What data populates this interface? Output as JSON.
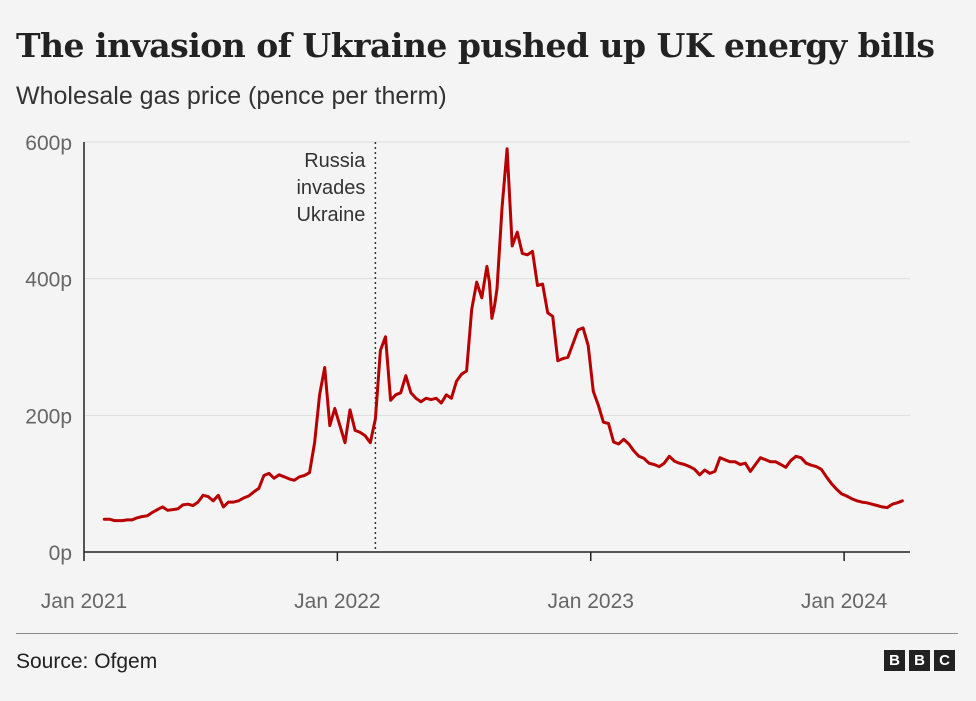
{
  "header": {
    "title": "The invasion of Ukraine pushed up UK energy bills",
    "subtitle": "Wholesale gas price (pence per therm)"
  },
  "footer": {
    "source": "Source: Ofgem",
    "logo_letters": [
      "B",
      "B",
      "C"
    ]
  },
  "colors": {
    "line": "#b80000",
    "axis": "#222222",
    "grid": "#dddddd"
  },
  "chart_data": {
    "type": "line",
    "title": "The invasion of Ukraine pushed up UK energy bills",
    "subtitle": "Wholesale gas price (pence per therm)",
    "xlabel": "",
    "ylabel": "",
    "xlim": [
      2021.0,
      2024.26
    ],
    "ylim": [
      0,
      600
    ],
    "grid": true,
    "y_ticks": [
      0,
      200,
      400,
      600
    ],
    "y_tick_labels": [
      "0p",
      "200p",
      "400p",
      "600p"
    ],
    "x_ticks": [
      2021.0,
      2022.0,
      2023.0,
      2024.0
    ],
    "x_tick_labels": [
      "Jan 2021",
      "Jan 2022",
      "Jan 2023",
      "Jan 2024"
    ],
    "annotation": {
      "x": 2022.15,
      "lines": [
        "Russia",
        "invades",
        "Ukraine"
      ]
    },
    "series": [
      {
        "name": "Wholesale gas price",
        "x": [
          2021.08,
          2021.1,
          2021.12,
          2021.15,
          2021.17,
          2021.19,
          2021.21,
          2021.23,
          2021.25,
          2021.27,
          2021.29,
          2021.31,
          2021.33,
          2021.35,
          2021.37,
          2021.39,
          2021.41,
          2021.43,
          2021.45,
          2021.47,
          2021.49,
          2021.51,
          2021.53,
          2021.55,
          2021.57,
          2021.59,
          2021.61,
          2021.63,
          2021.65,
          2021.67,
          2021.69,
          2021.71,
          2021.73,
          2021.75,
          2021.77,
          2021.79,
          2021.81,
          2021.83,
          2021.85,
          2021.87,
          2021.89,
          2021.91,
          2021.93,
          2021.95,
          2021.97,
          2021.99,
          2022.01,
          2022.03,
          2022.05,
          2022.07,
          2022.09,
          2022.11,
          2022.13,
          2022.15,
          2022.17,
          2022.19,
          2022.21,
          2022.23,
          2022.25,
          2022.27,
          2022.29,
          2022.31,
          2022.33,
          2022.35,
          2022.37,
          2022.39,
          2022.41,
          2022.43,
          2022.45,
          2022.47,
          2022.49,
          2022.51,
          2022.53,
          2022.55,
          2022.57,
          2022.59,
          2022.6,
          2022.61,
          2022.62,
          2022.63,
          2022.65,
          2022.67,
          2022.69,
          2022.71,
          2022.73,
          2022.75,
          2022.77,
          2022.79,
          2022.81,
          2022.83,
          2022.85,
          2022.87,
          2022.89,
          2022.91,
          2022.93,
          2022.95,
          2022.97,
          2022.99,
          2023.01,
          2023.03,
          2023.05,
          2023.07,
          2023.09,
          2023.11,
          2023.13,
          2023.15,
          2023.17,
          2023.19,
          2023.21,
          2023.23,
          2023.25,
          2023.27,
          2023.29,
          2023.31,
          2023.33,
          2023.35,
          2023.37,
          2023.39,
          2023.41,
          2023.43,
          2023.45,
          2023.47,
          2023.49,
          2023.51,
          2023.53,
          2023.55,
          2023.57,
          2023.59,
          2023.61,
          2023.63,
          2023.65,
          2023.67,
          2023.69,
          2023.71,
          2023.73,
          2023.75,
          2023.77,
          2023.79,
          2023.81,
          2023.83,
          2023.85,
          2023.87,
          2023.89,
          2023.91,
          2023.93,
          2023.95,
          2023.97,
          2023.99,
          2024.01,
          2024.03,
          2024.05,
          2024.07,
          2024.09,
          2024.11,
          2024.13,
          2024.15,
          2024.17,
          2024.19,
          2024.21,
          2024.23
        ],
        "values": [
          48,
          48,
          46,
          46,
          47,
          47,
          50,
          52,
          53,
          58,
          62,
          66,
          61,
          62,
          63,
          69,
          70,
          68,
          73,
          83,
          81,
          75,
          83,
          66,
          73,
          73,
          75,
          79,
          82,
          88,
          93,
          112,
          115,
          108,
          113,
          110,
          107,
          105,
          110,
          112,
          116,
          160,
          230,
          270,
          185,
          210,
          185,
          160,
          208,
          178,
          175,
          170,
          160,
          195,
          295,
          315,
          222,
          230,
          233,
          258,
          233,
          225,
          220,
          225,
          223,
          225,
          218,
          230,
          225,
          250,
          260,
          265,
          355,
          395,
          372,
          418,
          395,
          342,
          360,
          385,
          505,
          590,
          448,
          468,
          437,
          435,
          440,
          390,
          392,
          350,
          345,
          280,
          283,
          285,
          305,
          325,
          328,
          302,
          235,
          215,
          190,
          188,
          161,
          158,
          165,
          158,
          148,
          140,
          137,
          130,
          128,
          125,
          130,
          140,
          133,
          130,
          128,
          125,
          121,
          113,
          120,
          115,
          118,
          138,
          135,
          132,
          132,
          128,
          130,
          118,
          128,
          138,
          135,
          132,
          132,
          128,
          124,
          134,
          140,
          138,
          130,
          127,
          125,
          121,
          110,
          100,
          92,
          85,
          82,
          78,
          75,
          73,
          72,
          70,
          68,
          66,
          65,
          70,
          72,
          75
        ]
      }
    ]
  }
}
